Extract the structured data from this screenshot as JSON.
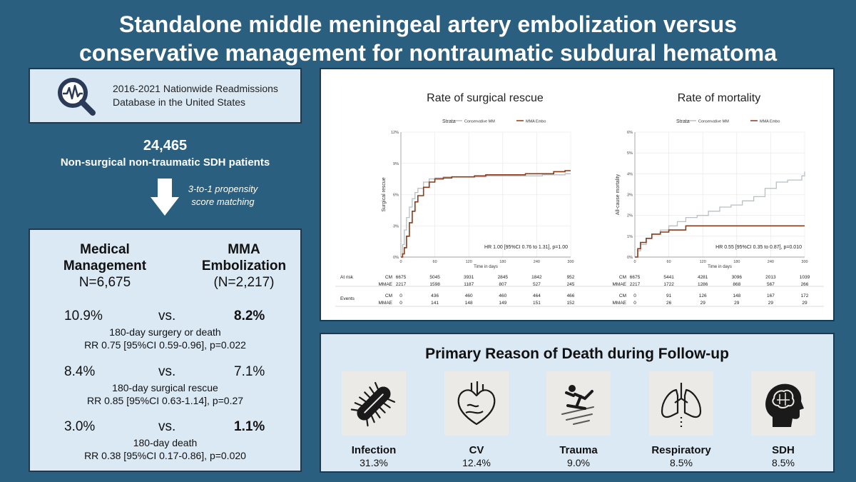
{
  "title_line1": "Standalone middle meningeal artery embolization versus",
  "title_line2": "conservative management for nontraumatic subdural hematoma",
  "database": {
    "line1": "2016-2021 Nationwide Readmissions",
    "line2": "Database in the United States"
  },
  "cohort": {
    "n": "24,465",
    "desc": "Non-surgical non-traumatic SDH patients"
  },
  "matching": {
    "line1": "3-to-1 propensity",
    "line2": "score matching"
  },
  "groups": {
    "medical": {
      "line1": "Medical",
      "line2": "Management",
      "n": "N=6,675"
    },
    "mma": {
      "line1": "MMA",
      "line2": "Embolization",
      "n": "(N=2,217)"
    }
  },
  "comparisons": [
    {
      "left": "10.9%",
      "vs": "vs.",
      "right": "8.2%",
      "label": "180-day surgery or death",
      "rr": "RR 0.75 [95%CI 0.59-0.96], p=0.022"
    },
    {
      "left": "8.4%",
      "vs": "vs.",
      "right": "7.1%",
      "label": "180-day surgical rescue",
      "rr": "RR 0.85 [95%CI 0.63-1.14], p=0.27"
    },
    {
      "left": "3.0%",
      "vs": "vs.",
      "right": "1.1%",
      "label": "180-day death",
      "rr": "RR 0.38 [95%CI 0.17-0.86], p=0.020"
    }
  ],
  "chart_data": [
    {
      "type": "line",
      "title": "Rate of surgical rescue",
      "legend_title": "Strata",
      "series": [
        {
          "name": "Conservative MM",
          "color": "#b8c0c4",
          "x": [
            0,
            3,
            6,
            10,
            15,
            20,
            25,
            30,
            40,
            50,
            60,
            75,
            90,
            110,
            130,
            150,
            180,
            200,
            220,
            250,
            270,
            290,
            300
          ],
          "y": [
            0,
            1.2,
            2.6,
            3.8,
            4.8,
            5.6,
            6.2,
            6.6,
            7.2,
            7.5,
            7.6,
            7.7,
            7.7,
            7.7,
            7.7,
            7.8,
            7.8,
            7.8,
            7.8,
            7.9,
            7.9,
            8.0,
            8.0
          ]
        },
        {
          "name": "MMA Embo",
          "color": "#8b3a1a",
          "x": [
            0,
            3,
            6,
            10,
            15,
            20,
            25,
            30,
            40,
            50,
            60,
            75,
            90,
            110,
            130,
            150,
            180,
            200,
            220,
            250,
            270,
            290,
            300
          ],
          "y": [
            0,
            0.3,
            0.9,
            2.0,
            3.3,
            4.4,
            5.3,
            5.9,
            6.7,
            7.2,
            7.5,
            7.6,
            7.7,
            7.7,
            7.8,
            7.9,
            7.9,
            7.9,
            8.0,
            8.0,
            8.2,
            8.3,
            8.3
          ]
        }
      ],
      "xlabel": "Time in days",
      "ylabel": "Surgical rescue",
      "xlim": [
        0,
        300
      ],
      "ylim": [
        0,
        12
      ],
      "xticks": [
        0,
        60,
        120,
        180,
        240,
        300
      ],
      "yticks": [
        0,
        3,
        6,
        9,
        12
      ],
      "ytick_labels": [
        "0%",
        "3%",
        "6%",
        "9%",
        "12%"
      ],
      "annotation": "HR 1.00 [95%CI 0.76 to 1.31], p=1.00",
      "at_risk_label": "At risk",
      "events_label": "Events",
      "at_risk": [
        {
          "group": "CM",
          "values": [
            "6675",
            "5045",
            "3931",
            "2845",
            "1842",
            "952"
          ]
        },
        {
          "group": "MMAE",
          "values": [
            "2217",
            "1598",
            "1187",
            "807",
            "527",
            "245"
          ]
        }
      ],
      "events": [
        {
          "group": "CM",
          "values": [
            "0",
            "436",
            "460",
            "460",
            "464",
            "466"
          ]
        },
        {
          "group": "MMAE",
          "values": [
            "0",
            "141",
            "148",
            "149",
            "151",
            "152"
          ]
        }
      ]
    },
    {
      "type": "line",
      "title": "Rate of mortality",
      "legend_title": "Strata",
      "series": [
        {
          "name": "Conservative MM",
          "color": "#b8c0c4",
          "x": [
            0,
            5,
            10,
            20,
            30,
            45,
            60,
            75,
            90,
            110,
            130,
            150,
            170,
            190,
            210,
            230,
            250,
            270,
            285,
            295,
            300
          ],
          "y": [
            0,
            0.3,
            0.6,
            0.9,
            1.1,
            1.3,
            1.5,
            1.7,
            1.9,
            2.0,
            2.2,
            2.4,
            2.5,
            2.7,
            2.9,
            3.3,
            3.6,
            3.7,
            3.7,
            3.9,
            4.1
          ]
        },
        {
          "name": "MMA Embo",
          "color": "#8b3a1a",
          "x": [
            0,
            5,
            10,
            20,
            30,
            45,
            60,
            75,
            90,
            110,
            150,
            200,
            250,
            300
          ],
          "y": [
            0,
            0.4,
            0.7,
            0.9,
            1.1,
            1.2,
            1.3,
            1.3,
            1.5,
            1.5,
            1.5,
            1.5,
            1.5,
            1.5
          ]
        }
      ],
      "xlabel": "Time in days",
      "ylabel": "All-cause mortality",
      "xlim": [
        0,
        300
      ],
      "ylim": [
        0,
        6
      ],
      "xticks": [
        0,
        60,
        120,
        180,
        240,
        300
      ],
      "yticks": [
        0,
        1,
        2,
        3,
        4,
        5,
        6
      ],
      "ytick_labels": [
        "0%",
        "1%",
        "2%",
        "3%",
        "4%",
        "5%",
        "6%"
      ],
      "annotation": "HR 0.55 [95%CI 0.35 to 0.87], p=0.010",
      "at_risk": [
        {
          "group": "CM",
          "values": [
            "6675",
            "5441",
            "4281",
            "3096",
            "2013",
            "1039"
          ]
        },
        {
          "group": "MMAE",
          "values": [
            "2217",
            "1722",
            "1286",
            "868",
            "567",
            "266"
          ]
        }
      ],
      "events": [
        {
          "group": "CM",
          "values": [
            "0",
            "91",
            "126",
            "148",
            "167",
            "172"
          ]
        },
        {
          "group": "MMAE",
          "values": [
            "0",
            "26",
            "29",
            "29",
            "29",
            "29"
          ]
        }
      ]
    }
  ],
  "death_section": {
    "title": "Primary Reason of Death during Follow-up",
    "causes": [
      {
        "name": "Infection",
        "pct": "31.3%",
        "icon": "bacteria-icon"
      },
      {
        "name": "CV",
        "pct": "12.4%",
        "icon": "heart-icon"
      },
      {
        "name": "Trauma",
        "pct": "9.0%",
        "icon": "falling-person-icon"
      },
      {
        "name": "Respiratory",
        "pct": "8.5%",
        "icon": "lungs-icon"
      },
      {
        "name": "SDH",
        "pct": "8.5%",
        "icon": "brain-head-icon"
      }
    ]
  }
}
